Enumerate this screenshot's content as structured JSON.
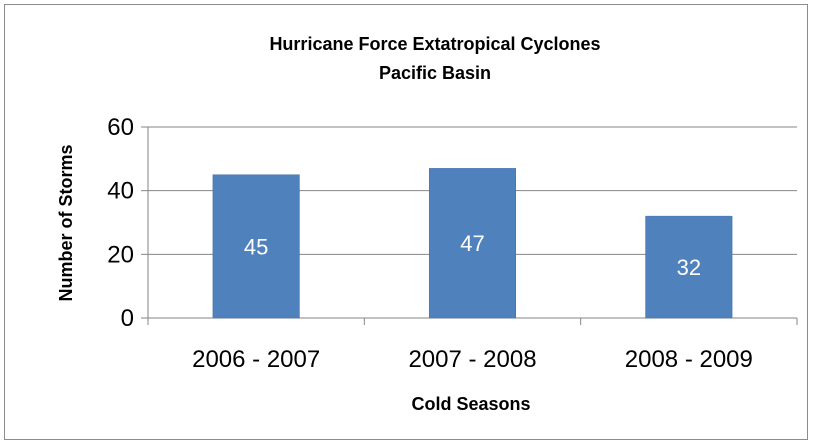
{
  "chart_data": {
    "type": "bar",
    "title": "Hurricane Force Extatropical Cyclones",
    "subtitle": "Pacific  Basin",
    "categories": [
      "2006 - 2007",
      "2007 - 2008",
      "2008 - 2009"
    ],
    "values": [
      45,
      47,
      32
    ],
    "data_labels": [
      "45",
      "47",
      "32"
    ],
    "xlabel": "Cold Seasons",
    "ylabel": "Number of Storms",
    "ylim": [
      0,
      60
    ],
    "yticks": [
      0,
      20,
      40,
      60
    ],
    "ytick_labels": [
      "0",
      "20",
      "40",
      "60"
    ],
    "grid": true,
    "legend": "none",
    "colors": {
      "bar": "#4f81bd",
      "bar_border": "#3f6fa8",
      "grid": "#868686",
      "axis": "#868686"
    }
  }
}
